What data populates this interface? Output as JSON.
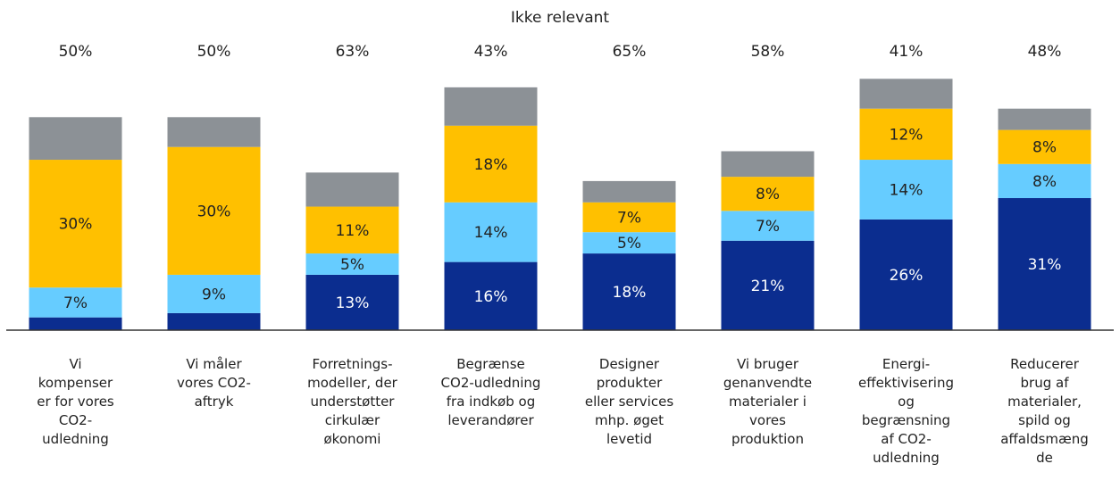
{
  "chart_data": {
    "type": "stacked_bar",
    "categories": [
      "Vi\nkompenser\ner for vores\nCO2-\nudledning",
      "Vi måler\nvores CO2-\naftryk",
      "Forretnings-\nmodeller, der\nunderstøtter\ncirkulær\nøkonomi",
      "Begrænse\nCO2-udledning\nfra indkøb og\nleverandører",
      "Designer\nprodukter\neller services\nmhp. øget\nlevetid",
      "Vi bruger\ngenanvendte\nmaterialer i\nvores\nproduktion",
      "Energi-\neffektivisering\nog\nbegrænsning\naf CO2-\nudledning",
      "Reducerer\nbrug af\nmaterialer,\nspild og\naffaldsmæng\nde"
    ],
    "series": [
      {
        "color": "#0b2d8f",
        "values": [
          3,
          4,
          13,
          16,
          18,
          21,
          26,
          31
        ],
        "value_labels": [
          null,
          null,
          "13%",
          "16%",
          "18%",
          "21%",
          "26%",
          "31%"
        ]
      },
      {
        "color": "#66ccff",
        "values": [
          7,
          9,
          5,
          14,
          5,
          7,
          14,
          8
        ],
        "value_labels": [
          "7%",
          "9%",
          "5%",
          "14%",
          "5%",
          "7%",
          "14%",
          "8%"
        ]
      },
      {
        "color": "#ffc000",
        "values": [
          30,
          30,
          11,
          18,
          7,
          8,
          12,
          8
        ],
        "value_labels": [
          "30%",
          "30%",
          "11%",
          "18%",
          "7%",
          "8%",
          "12%",
          "8%"
        ]
      },
      {
        "color": "#8c9196",
        "values": [
          10,
          7,
          8,
          9,
          5,
          6,
          7,
          5
        ]
      }
    ],
    "top_series": {
      "name": "Ikke relevant",
      "values": [
        50,
        50,
        63,
        43,
        65,
        58,
        41,
        48
      ],
      "value_labels": [
        "50%",
        "50%",
        "63%",
        "43%",
        "65%",
        "58%",
        "41%",
        "48%"
      ]
    },
    "ylim": [
      0,
      62
    ]
  }
}
